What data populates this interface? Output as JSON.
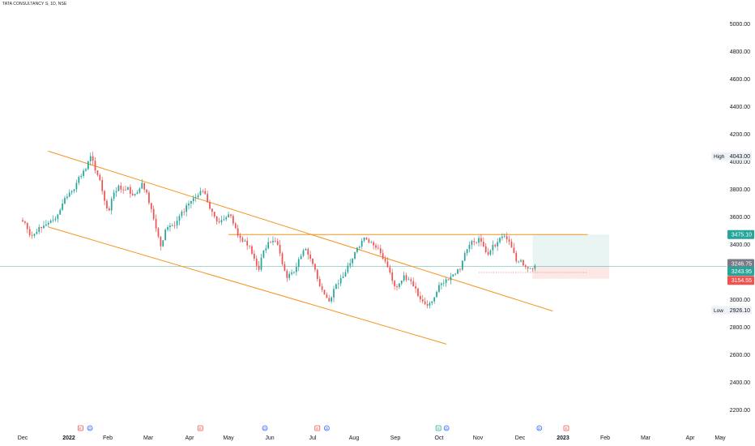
{
  "header": {
    "title": "TATA CONSULTANCY S, 1D, NSE"
  },
  "colors": {
    "up": "#26a69a",
    "down": "#ef5350",
    "trendline": "#f7931e",
    "last_price_line": "#26a69a",
    "target_zone": "#e8f5f3",
    "stop_zone": "#fde8e8",
    "axis_text": "#131722"
  },
  "chart_data": {
    "type": "candlestick",
    "title": "TATA CONSULTANCY S, 1D, NSE",
    "x_ticks": [
      "Dec",
      "2022",
      "Feb",
      "Mar",
      "Apr",
      "May",
      "Jun",
      "Jul",
      "Aug",
      "Sep",
      "Oct",
      "Nov",
      "Dec",
      "2023",
      "Feb",
      "Mar",
      "Apr",
      "May"
    ],
    "y_ticks": [
      2200,
      2400,
      2600,
      2800,
      3000,
      3200,
      3400,
      3600,
      3800,
      4000,
      4200,
      4400,
      4600,
      4800,
      5000
    ],
    "y_tick_labels": [
      "2200.00",
      "2400.00",
      "2600.00",
      "2800.00",
      "3000.00",
      "3200.00",
      "3400.00",
      "3600.00",
      "3800.00",
      "4000.00",
      "4200.00",
      "4400.00",
      "4600.00",
      "4800.00",
      "5000.00"
    ],
    "ylim": [
      2140,
      5120
    ],
    "high": {
      "label": "High",
      "value": "4043.00"
    },
    "low": {
      "label": "Low",
      "value": "2926.10"
    },
    "price_badges": [
      {
        "value": "3475.10",
        "kind": "target"
      },
      {
        "value": "3246.75",
        "kind": "reference"
      },
      {
        "value": "3243.95",
        "kind": "last"
      },
      {
        "value": "3154.55",
        "kind": "stop"
      }
    ],
    "daily_closes": [
      3560,
      3470,
      3480,
      3530,
      3540,
      3560,
      3580,
      3620,
      3700,
      3750,
      3790,
      3850,
      3900,
      3950,
      4043,
      3940,
      3870,
      3720,
      3650,
      3780,
      3830,
      3800,
      3820,
      3760,
      3780,
      3850,
      3780,
      3660,
      3520,
      3390,
      3510,
      3540,
      3540,
      3610,
      3640,
      3700,
      3740,
      3760,
      3790,
      3710,
      3640,
      3570,
      3580,
      3600,
      3610,
      3520,
      3450,
      3430,
      3390,
      3300,
      3220,
      3360,
      3420,
      3430,
      3400,
      3260,
      3160,
      3200,
      3240,
      3320,
      3370,
      3300,
      3220,
      3100,
      3040,
      2990,
      3080,
      3120,
      3170,
      3250,
      3300,
      3380,
      3430,
      3440,
      3420,
      3380,
      3340,
      3280,
      3200,
      3100,
      3120,
      3180,
      3150,
      3100,
      3030,
      2990,
      2960,
      2990,
      3060,
      3120,
      3150,
      3170,
      3190,
      3220,
      3340,
      3400,
      3420,
      3450,
      3390,
      3330,
      3400,
      3420,
      3460,
      3440,
      3380,
      3280,
      3290,
      3240,
      3230,
      3250
    ],
    "candle_span": [
      "2021-12-01",
      "2022-12-15"
    ],
    "trendlines": [
      {
        "name": "channel-upper",
        "points": [
          [
            "2021-12-20",
            4080
          ],
          [
            "2022-12-30",
            2920
          ]
        ]
      },
      {
        "name": "channel-lower",
        "points": [
          [
            "2021-12-20",
            3530
          ],
          [
            "2022-10-12",
            2680
          ]
        ]
      },
      {
        "name": "resistance",
        "points": [
          [
            "2022-05-03",
            3475.1
          ],
          [
            "2023-01-25",
            3475.1
          ]
        ]
      }
    ],
    "position": {
      "start": "2022-12-15",
      "end": "2023-02-10",
      "entry": 3243.95,
      "target": 3475.1,
      "stop": 3154.55
    },
    "events": [
      {
        "date": "2022-01-13",
        "type": "earnings",
        "icon": "E"
      },
      {
        "date": "2022-01-20",
        "type": "dividend",
        "icon": "D"
      },
      {
        "date": "2022-04-12",
        "type": "earnings",
        "icon": "E"
      },
      {
        "date": "2022-05-30",
        "type": "dividend",
        "icon": "D"
      },
      {
        "date": "2022-07-08",
        "type": "earnings",
        "icon": "E"
      },
      {
        "date": "2022-07-15",
        "type": "dividend",
        "icon": "D"
      },
      {
        "date": "2022-10-06",
        "type": "split",
        "icon": "S"
      },
      {
        "date": "2022-10-12",
        "type": "dividend",
        "icon": "D"
      },
      {
        "date": "2022-12-20",
        "type": "dividend",
        "icon": "D"
      },
      {
        "date": "2023-01-09",
        "type": "earnings",
        "icon": "E"
      }
    ]
  }
}
